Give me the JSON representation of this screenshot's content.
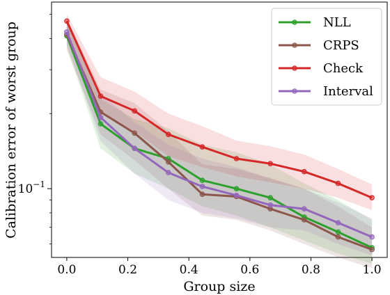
{
  "chart_data": {
    "type": "line",
    "title": "",
    "xlabel": "Group size",
    "ylabel": "Calibration error of worst group",
    "x": [
      0.0,
      0.111,
      0.222,
      0.333,
      0.444,
      0.556,
      0.667,
      0.778,
      0.889,
      1.0
    ],
    "x_ticks": [
      0.0,
      0.2,
      0.4,
      0.6,
      0.8,
      1.0
    ],
    "x_tick_labels": [
      "0.0",
      "0.2",
      "0.4",
      "0.6",
      "0.8",
      "1.0"
    ],
    "xlim": [
      -0.05,
      1.05
    ],
    "y_scale": "log",
    "ylim": [
      0.053,
      0.56
    ],
    "y_ticks": [
      0.1
    ],
    "y_tick_labels": [
      "10−1"
    ],
    "legend_position": "top-right",
    "series": [
      {
        "name": "NLL",
        "color": "#2ca02c",
        "values": [
          0.41,
          0.182,
          0.145,
          0.132,
          0.108,
          0.1,
          0.092,
          0.077,
          0.067,
          0.058
        ],
        "band_low": [
          0.37,
          0.145,
          0.115,
          0.1,
          0.085,
          0.078,
          0.07,
          0.062,
          0.055,
          0.05
        ],
        "band_high": [
          0.46,
          0.23,
          0.19,
          0.175,
          0.15,
          0.14,
          0.125,
          0.105,
          0.09,
          0.075
        ]
      },
      {
        "name": "CRPS",
        "color": "#8c564b",
        "values": [
          0.415,
          0.203,
          0.167,
          0.128,
          0.095,
          0.093,
          0.083,
          0.075,
          0.064,
          0.057
        ],
        "band_low": [
          0.36,
          0.165,
          0.13,
          0.1,
          0.078,
          0.075,
          0.068,
          0.06,
          0.053,
          0.048
        ],
        "band_high": [
          0.48,
          0.25,
          0.22,
          0.17,
          0.125,
          0.12,
          0.11,
          0.1,
          0.085,
          0.07
        ]
      },
      {
        "name": "Check",
        "color": "#d62728",
        "values": [
          0.47,
          0.235,
          0.205,
          0.165,
          0.147,
          0.132,
          0.126,
          0.117,
          0.105,
          0.092
        ],
        "band_low": [
          0.43,
          0.2,
          0.17,
          0.135,
          0.122,
          0.112,
          0.106,
          0.1,
          0.092,
          0.082
        ],
        "band_high": [
          0.5,
          0.28,
          0.245,
          0.2,
          0.178,
          0.156,
          0.148,
          0.137,
          0.12,
          0.104
        ]
      },
      {
        "name": "Interval",
        "color": "#9467bd",
        "values": [
          0.425,
          0.193,
          0.145,
          0.116,
          0.102,
          0.094,
          0.086,
          0.083,
          0.073,
          0.064
        ],
        "band_low": [
          0.38,
          0.155,
          0.115,
          0.09,
          0.08,
          0.076,
          0.07,
          0.068,
          0.06,
          0.054
        ],
        "band_high": [
          0.47,
          0.24,
          0.185,
          0.15,
          0.132,
          0.122,
          0.11,
          0.1,
          0.088,
          0.076
        ]
      }
    ]
  }
}
